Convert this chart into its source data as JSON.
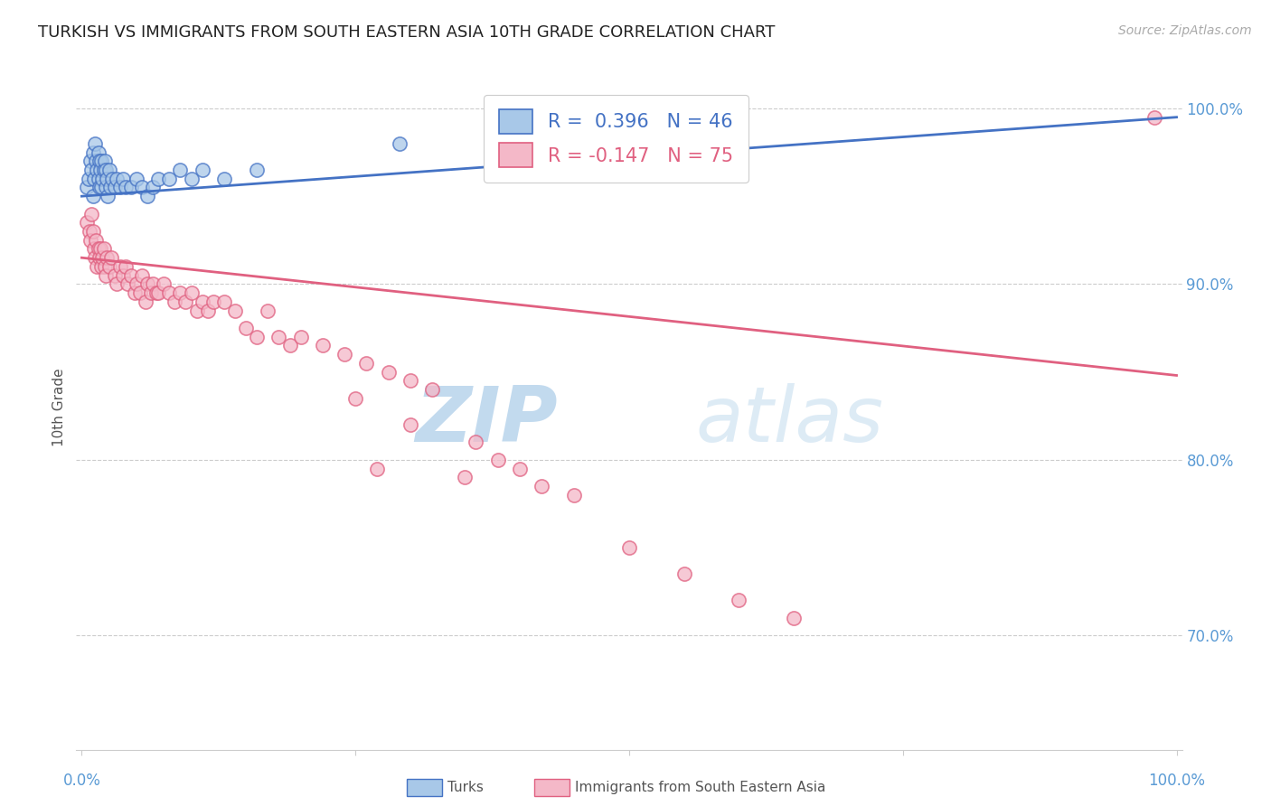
{
  "title": "TURKISH VS IMMIGRANTS FROM SOUTH EASTERN ASIA 10TH GRADE CORRELATION CHART",
  "source": "Source: ZipAtlas.com",
  "ylabel": "10th Grade",
  "blue_R": 0.396,
  "blue_N": 46,
  "pink_R": -0.147,
  "pink_N": 75,
  "blue_color": "#a8c8e8",
  "pink_color": "#f4b8c8",
  "blue_line_color": "#4472c4",
  "pink_line_color": "#e06080",
  "watermark_zip": "ZIP",
  "watermark_atlas": "atlas",
  "legend_blue_label": "Turks",
  "legend_pink_label": "Immigrants from South Eastern Asia",
  "blue_scatter_x": [
    0.005,
    0.006,
    0.008,
    0.009,
    0.01,
    0.01,
    0.011,
    0.012,
    0.013,
    0.014,
    0.015,
    0.015,
    0.016,
    0.016,
    0.017,
    0.018,
    0.018,
    0.019,
    0.02,
    0.021,
    0.022,
    0.022,
    0.023,
    0.024,
    0.025,
    0.026,
    0.028,
    0.03,
    0.032,
    0.035,
    0.038,
    0.04,
    0.045,
    0.05,
    0.055,
    0.06,
    0.065,
    0.07,
    0.08,
    0.09,
    0.1,
    0.11,
    0.13,
    0.16,
    0.29,
    0.41
  ],
  "blue_scatter_y": [
    95.5,
    96.0,
    97.0,
    96.5,
    97.5,
    95.0,
    96.0,
    98.0,
    97.0,
    96.5,
    97.5,
    96.0,
    95.5,
    97.0,
    96.5,
    97.0,
    95.5,
    96.0,
    96.5,
    97.0,
    95.5,
    96.5,
    96.0,
    95.0,
    96.5,
    95.5,
    96.0,
    95.5,
    96.0,
    95.5,
    96.0,
    95.5,
    95.5,
    96.0,
    95.5,
    95.0,
    95.5,
    96.0,
    96.0,
    96.5,
    96.0,
    96.5,
    96.0,
    96.5,
    98.0,
    99.5
  ],
  "pink_scatter_x": [
    0.005,
    0.007,
    0.008,
    0.009,
    0.01,
    0.011,
    0.012,
    0.013,
    0.014,
    0.015,
    0.016,
    0.017,
    0.018,
    0.019,
    0.02,
    0.021,
    0.022,
    0.023,
    0.025,
    0.027,
    0.03,
    0.032,
    0.035,
    0.038,
    0.04,
    0.042,
    0.045,
    0.048,
    0.05,
    0.053,
    0.055,
    0.058,
    0.06,
    0.063,
    0.065,
    0.068,
    0.07,
    0.075,
    0.08,
    0.085,
    0.09,
    0.095,
    0.1,
    0.105,
    0.11,
    0.115,
    0.12,
    0.13,
    0.14,
    0.15,
    0.16,
    0.17,
    0.18,
    0.19,
    0.2,
    0.22,
    0.24,
    0.26,
    0.28,
    0.3,
    0.32,
    0.25,
    0.27,
    0.35,
    0.3,
    0.36,
    0.38,
    0.4,
    0.42,
    0.45,
    0.5,
    0.55,
    0.6,
    0.65,
    0.98
  ],
  "pink_scatter_y": [
    93.5,
    93.0,
    92.5,
    94.0,
    93.0,
    92.0,
    91.5,
    92.5,
    91.0,
    92.0,
    91.5,
    92.0,
    91.0,
    91.5,
    92.0,
    91.0,
    90.5,
    91.5,
    91.0,
    91.5,
    90.5,
    90.0,
    91.0,
    90.5,
    91.0,
    90.0,
    90.5,
    89.5,
    90.0,
    89.5,
    90.5,
    89.0,
    90.0,
    89.5,
    90.0,
    89.5,
    89.5,
    90.0,
    89.5,
    89.0,
    89.5,
    89.0,
    89.5,
    88.5,
    89.0,
    88.5,
    89.0,
    89.0,
    88.5,
    87.5,
    87.0,
    88.5,
    87.0,
    86.5,
    87.0,
    86.5,
    86.0,
    85.5,
    85.0,
    84.5,
    84.0,
    83.5,
    79.5,
    79.0,
    82.0,
    81.0,
    80.0,
    79.5,
    78.5,
    78.0,
    75.0,
    73.5,
    72.0,
    71.0,
    99.5
  ],
  "blue_line_x": [
    0.0,
    1.0
  ],
  "blue_line_y": [
    95.0,
    99.5
  ],
  "pink_line_x": [
    0.0,
    1.0
  ],
  "pink_line_y": [
    91.5,
    84.8
  ],
  "ylim": [
    63.5,
    102.5
  ],
  "xlim": [
    -0.005,
    1.005
  ],
  "ytick_positions": [
    70.0,
    80.0,
    90.0,
    100.0
  ],
  "ytick_labels": [
    "70.0%",
    "80.0%",
    "90.0%",
    "100.0%"
  ],
  "grid_color": "#cccccc",
  "background_color": "#ffffff",
  "title_fontsize": 13,
  "axis_label_color": "#555555",
  "tick_label_color": "#5b9bd5",
  "source_color": "#aaaaaa",
  "source_fontsize": 10
}
